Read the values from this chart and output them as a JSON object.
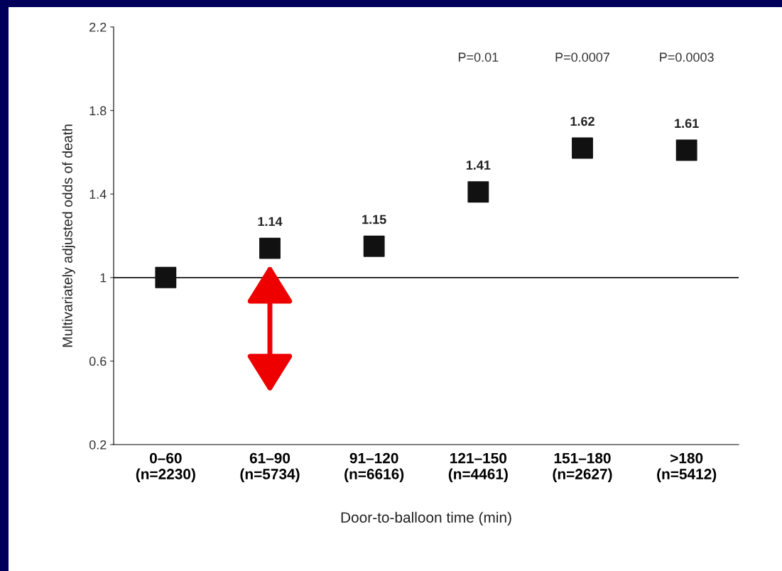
{
  "chart_data": {
    "type": "scatter",
    "xlabel": "Door-to-balloon time (min)",
    "ylabel": "Multivariately adjusted odds of death",
    "categories": [
      "0–60\n(n=2230)",
      "61–90\n(n=5734)",
      "91–120\n(n=6616)",
      "121–150\n(n=4461)",
      "151–180\n(n=2627)",
      ">180\n(n=5412)"
    ],
    "series": [
      {
        "color": "#111111",
        "values": [
          1.0,
          1.14,
          1.15,
          1.41,
          1.62,
          1.61
        ],
        "value_labels": [
          null,
          "1.14",
          "1.15",
          "1.41",
          "1.62",
          "1.61"
        ]
      }
    ],
    "marker": "square",
    "ylim": [
      0.2,
      2.2
    ],
    "yticks": [
      0.2,
      0.6,
      1,
      1.4,
      1.8,
      2.2
    ],
    "ref_lines": [
      {
        "axis": "y",
        "value": 1,
        "color": "#111111"
      }
    ],
    "annotations": [
      "P=0.01",
      "P=0.0007",
      "P=0.0003"
    ],
    "grid": false,
    "legend": false
  }
}
